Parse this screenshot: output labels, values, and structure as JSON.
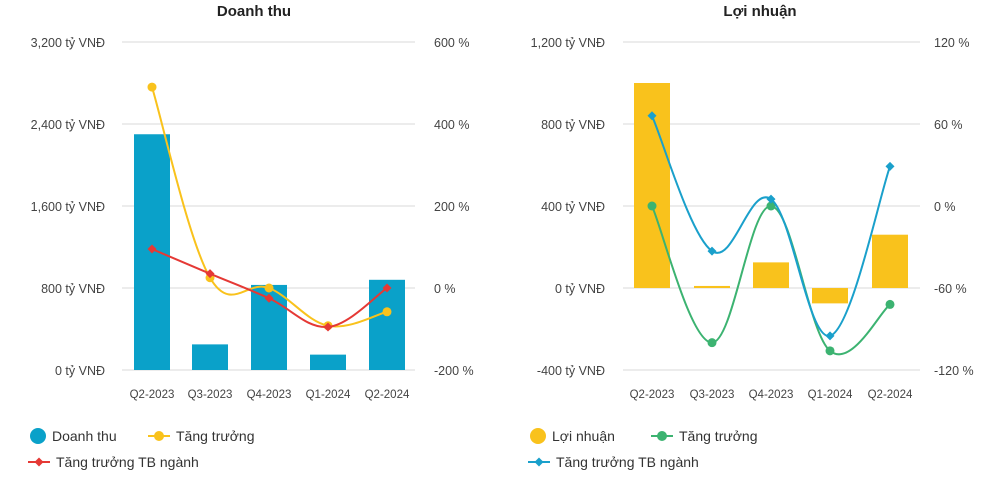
{
  "chart_data": [
    {
      "type": "bar",
      "title": "Doanh thu",
      "categories": [
        "Q2-2023",
        "Q3-2023",
        "Q4-2023",
        "Q1-2024",
        "Q2-2024"
      ],
      "y_left": {
        "ticks": [
          "3,200 tỷ VNĐ",
          "2,400 tỷ VNĐ",
          "1,600 tỷ VNĐ",
          "800 tỷ VNĐ",
          "0 tỷ VNĐ"
        ],
        "range": [
          0,
          3200
        ]
      },
      "y_right": {
        "ticks": [
          "600 %",
          "400 %",
          "200 %",
          "0 %",
          "-200 %"
        ],
        "range": [
          -200,
          600
        ]
      },
      "grid": true,
      "legend_position": "bottom-left",
      "series": [
        {
          "name": "Doanh thu",
          "kind": "bar",
          "axis": "left",
          "color": "#0aa1c9",
          "values": [
            2300,
            250,
            830,
            150,
            880
          ]
        },
        {
          "name": "Tăng trưởng",
          "kind": "line",
          "axis": "right",
          "color": "#f9c21c",
          "values": [
            490,
            25,
            0,
            -92,
            -58
          ]
        },
        {
          "name": "Tăng trưởng TB ngành",
          "kind": "line",
          "axis": "right",
          "color": "#e53935",
          "values": [
            95,
            35,
            -25,
            -95,
            0
          ]
        }
      ]
    },
    {
      "type": "bar",
      "title": "Lợi nhuận",
      "categories": [
        "Q2-2023",
        "Q3-2023",
        "Q4-2023",
        "Q1-2024",
        "Q2-2024"
      ],
      "y_left": {
        "ticks": [
          "1,200 tỷ VNĐ",
          "800 tỷ VNĐ",
          "400 tỷ VNĐ",
          "0 tỷ VNĐ",
          "-400 tỷ VNĐ"
        ],
        "range": [
          -400,
          1200
        ]
      },
      "y_right": {
        "ticks": [
          "120 %",
          "60 %",
          "0 %",
          "-60 %",
          "-120 %"
        ],
        "range": [
          -120,
          120
        ]
      },
      "grid": true,
      "legend_position": "bottom-left",
      "series": [
        {
          "name": "Lợi nhuận",
          "kind": "bar",
          "axis": "left",
          "color": "#f9c21c",
          "values": [
            1000,
            10,
            125,
            -75,
            260
          ]
        },
        {
          "name": "Tăng trưởng",
          "kind": "line",
          "axis": "right",
          "color": "#3cb371",
          "values": [
            0,
            -100,
            0,
            -106,
            -72
          ]
        },
        {
          "name": "Tăng trưởng TB ngành",
          "kind": "line",
          "axis": "right",
          "color": "#1aa0cb",
          "values": [
            66,
            -33,
            5,
            -95,
            29
          ]
        }
      ]
    }
  ]
}
